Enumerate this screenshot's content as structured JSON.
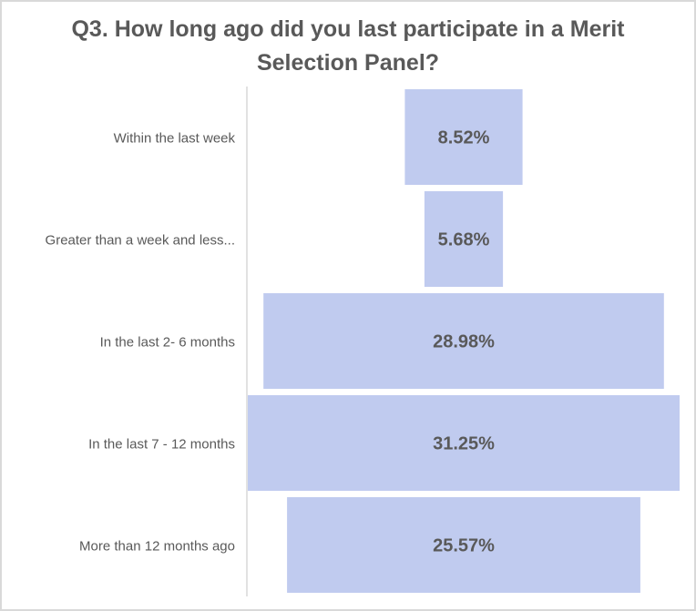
{
  "chart_data": {
    "type": "bar",
    "subtype": "funnel",
    "title_lines": [
      "Q3. How long ago did you last participate in a Merit",
      "Selection Panel?"
    ],
    "categories": [
      "Within the last week",
      "Greater than a week and less...",
      "In the last 2- 6 months",
      "In the last 7 - 12 months",
      "More than 12 months ago"
    ],
    "values": [
      8.52,
      5.68,
      28.98,
      31.25,
      25.57
    ],
    "value_labels": [
      "8.52%",
      "5.68%",
      "28.98%",
      "31.25%",
      "25.57%"
    ],
    "unit": "%",
    "colors": {
      "bar": "#c0cbef",
      "text": "#595959",
      "category_text": "#595959",
      "axis": "#d9d9d9",
      "border": "#d9d9d9"
    },
    "grid": false,
    "legend": "none"
  }
}
